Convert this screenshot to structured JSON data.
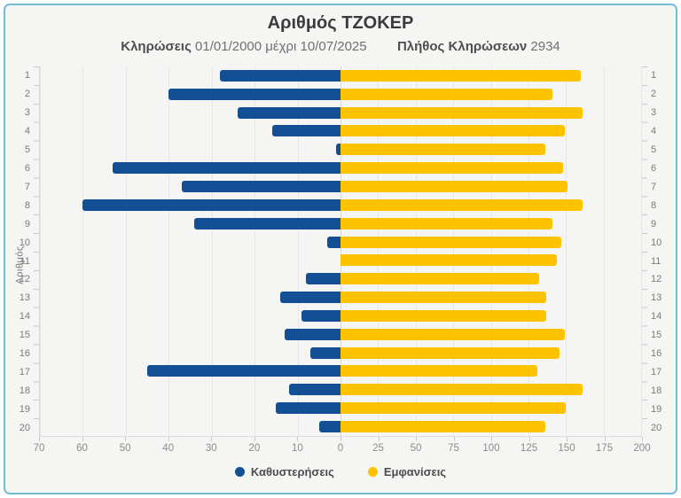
{
  "title": "Αριθμός ΤΖΟΚΕΡ",
  "subtitle": {
    "draws_label": "Κληρώσεις",
    "draws_range": "01/01/2000 μέχρι 10/07/2025",
    "count_label": "Πλήθος Κληρώσεων",
    "count_value": "2934"
  },
  "y_axis_label": "Αριθμός",
  "colors": {
    "delay_blue": "#124f94",
    "appearance_yellow": "#fdc300",
    "panel_border": "#74bad9",
    "panel_background": "#f5f5f3"
  },
  "chart_data": {
    "type": "bar",
    "orientation": "horizontal-diverging",
    "title": "Αριθμός ΤΖΟΚΕΡ",
    "subtitle": "Κληρώσεις 01/01/2000 μέχρι 10/07/2025  Πλήθος Κληρώσεων 2934",
    "ylabel": "Αριθμός",
    "categories": [
      1,
      2,
      3,
      4,
      5,
      6,
      7,
      8,
      9,
      10,
      11,
      12,
      13,
      14,
      15,
      16,
      17,
      18,
      19,
      20
    ],
    "series": [
      {
        "name": "Καθυστερήσεις",
        "side": "left",
        "color": "#124f94",
        "axis_max": 70,
        "values": [
          28,
          40,
          24,
          16,
          1,
          53,
          37,
          60,
          34,
          3,
          0,
          8,
          14,
          9,
          13,
          7,
          45,
          12,
          15,
          5
        ]
      },
      {
        "name": "Εμφανίσεις",
        "side": "right",
        "color": "#fdc300",
        "axis_max": 200,
        "values": [
          160,
          141,
          161,
          149,
          136,
          148,
          151,
          161,
          141,
          147,
          144,
          132,
          137,
          137,
          149,
          146,
          131,
          161,
          150,
          136
        ]
      }
    ],
    "x_ticks_left": [
      70,
      60,
      50,
      40,
      30,
      20,
      10
    ],
    "x_tick_zero": "0",
    "x_ticks_right": [
      25,
      50,
      75,
      100,
      125,
      150,
      175,
      200
    ],
    "grid": true,
    "legend_position": "bottom",
    "legend": [
      {
        "label": "Καθυστερήσεις",
        "color": "#124f94"
      },
      {
        "label": "Εμφανίσεις",
        "color": "#fdc300"
      }
    ]
  }
}
